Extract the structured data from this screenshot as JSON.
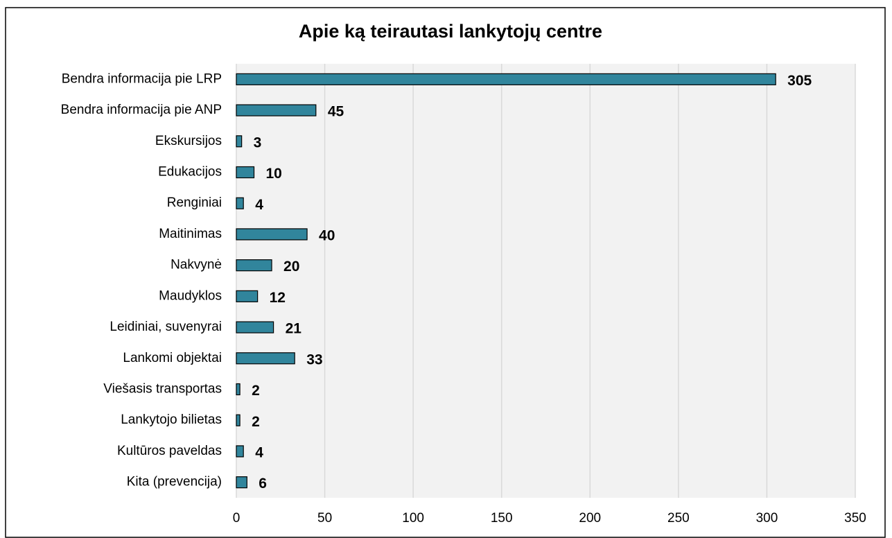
{
  "chart_data": {
    "type": "bar",
    "orientation": "horizontal",
    "title": "Apie ką teirautasi lankytojų centre",
    "categories": [
      "Bendra informacija pie LRP",
      "Bendra informacija pie ANP",
      "Ekskursijos",
      "Edukacijos",
      "Renginiai",
      "Maitinimas",
      "Nakvynė",
      "Maudyklos",
      "Leidiniai, suvenyrai",
      "Lankomi objektai",
      "Viešasis transportas",
      "Lankytojo bilietas",
      "Kultūros paveldas",
      "Kita (prevencija)"
    ],
    "values": [
      305,
      45,
      3,
      10,
      4,
      40,
      20,
      12,
      21,
      33,
      2,
      2,
      4,
      6
    ],
    "color": "#31859c",
    "xlim": [
      0,
      350
    ],
    "xticks": [
      0,
      50,
      100,
      150,
      200,
      250,
      300,
      350
    ],
    "grid": true
  }
}
